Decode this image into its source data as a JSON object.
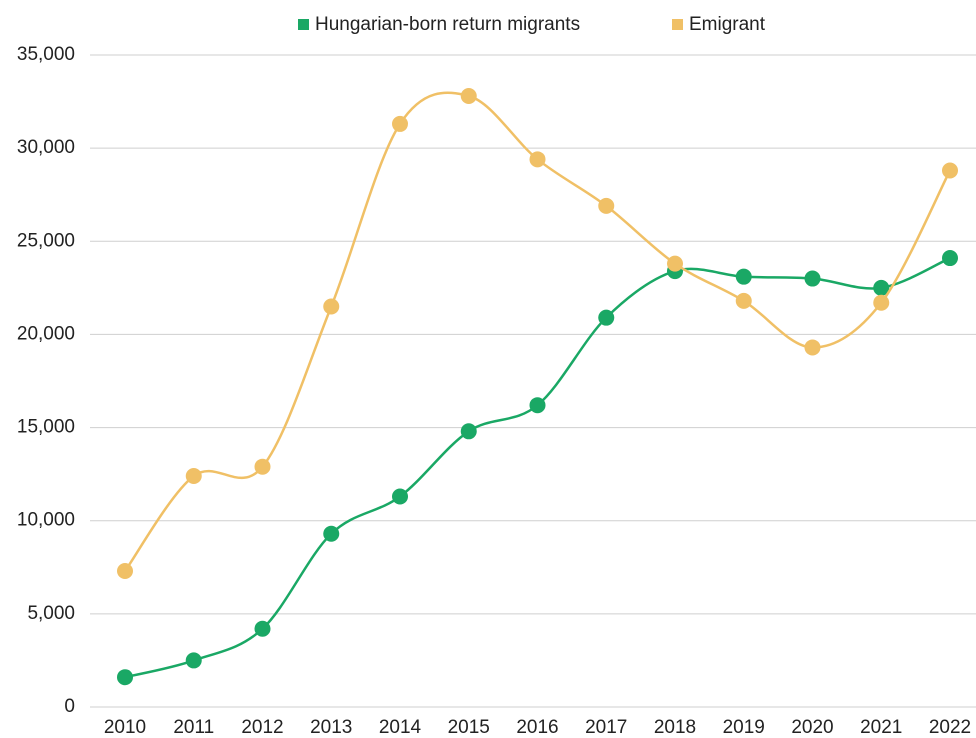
{
  "chart_data": {
    "type": "line",
    "categories": [
      "2010",
      "2011",
      "2012",
      "2013",
      "2014",
      "2015",
      "2016",
      "2017",
      "2018",
      "2019",
      "2020",
      "2021",
      "2022"
    ],
    "series": [
      {
        "name": "Hungarian-born return migrants",
        "color": "#1aa865",
        "values": [
          1600,
          2500,
          4200,
          9300,
          11300,
          14800,
          16200,
          20900,
          23400,
          23100,
          23000,
          22500,
          24100
        ]
      },
      {
        "name": "Emigrant",
        "color": "#f0c066",
        "values": [
          7300,
          12400,
          12900,
          21500,
          31300,
          32800,
          29400,
          26900,
          23800,
          21800,
          19300,
          21700,
          28800
        ]
      }
    ],
    "ylim": [
      0,
      35000
    ],
    "yticks": [
      0,
      {
        "value": 5000,
        "label": "5,000"
      },
      {
        "value": 10000,
        "label": "10,000"
      },
      {
        "value": 15000,
        "label": "15,000"
      },
      {
        "value": 20000,
        "label": "20,000"
      },
      {
        "value": 25000,
        "label": "25,000"
      },
      {
        "value": 30000,
        "label": "30,000"
      },
      {
        "value": 35000,
        "label": "35,000"
      }
    ],
    "grid": true,
    "legend": "top"
  }
}
